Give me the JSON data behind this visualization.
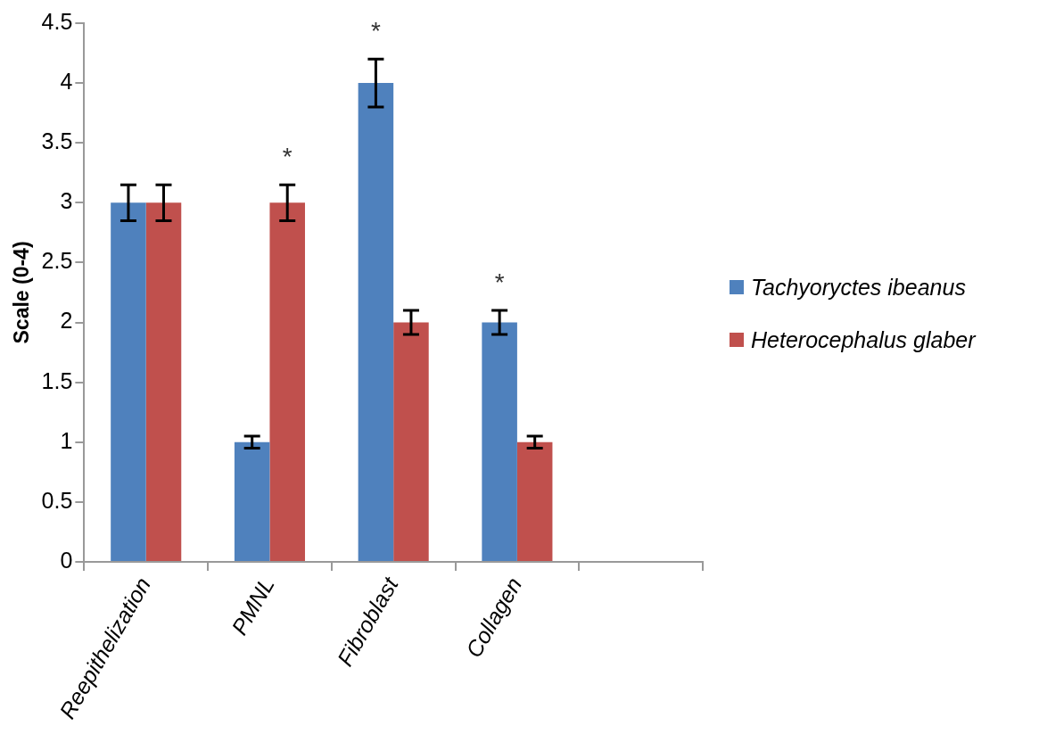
{
  "chart_data": {
    "type": "bar",
    "ylabel": "Scale (0-4)",
    "categories": [
      "Reepithelization",
      "PMNL",
      "Fibroblast",
      "Collagen",
      null
    ],
    "series": [
      {
        "name": "Tachyoryctes ibeanus",
        "color": "#4f81bd",
        "values": [
          3,
          1,
          4,
          2,
          null
        ],
        "errors": [
          0.15,
          0.05,
          0.2,
          0.1,
          null
        ]
      },
      {
        "name": "Heterocephalus glaber",
        "color": "#c0504d",
        "values": [
          3,
          3,
          2,
          1,
          null
        ],
        "errors": [
          0.15,
          0.15,
          0.1,
          0.05,
          null
        ]
      }
    ],
    "ylim": [
      0,
      4.5
    ],
    "yticks": [
      0,
      0.5,
      1,
      1.5,
      2,
      2.5,
      3,
      3.5,
      4,
      4.5
    ],
    "grid": false,
    "legend": "right",
    "annotations": [
      "*",
      "*",
      "*"
    ]
  }
}
